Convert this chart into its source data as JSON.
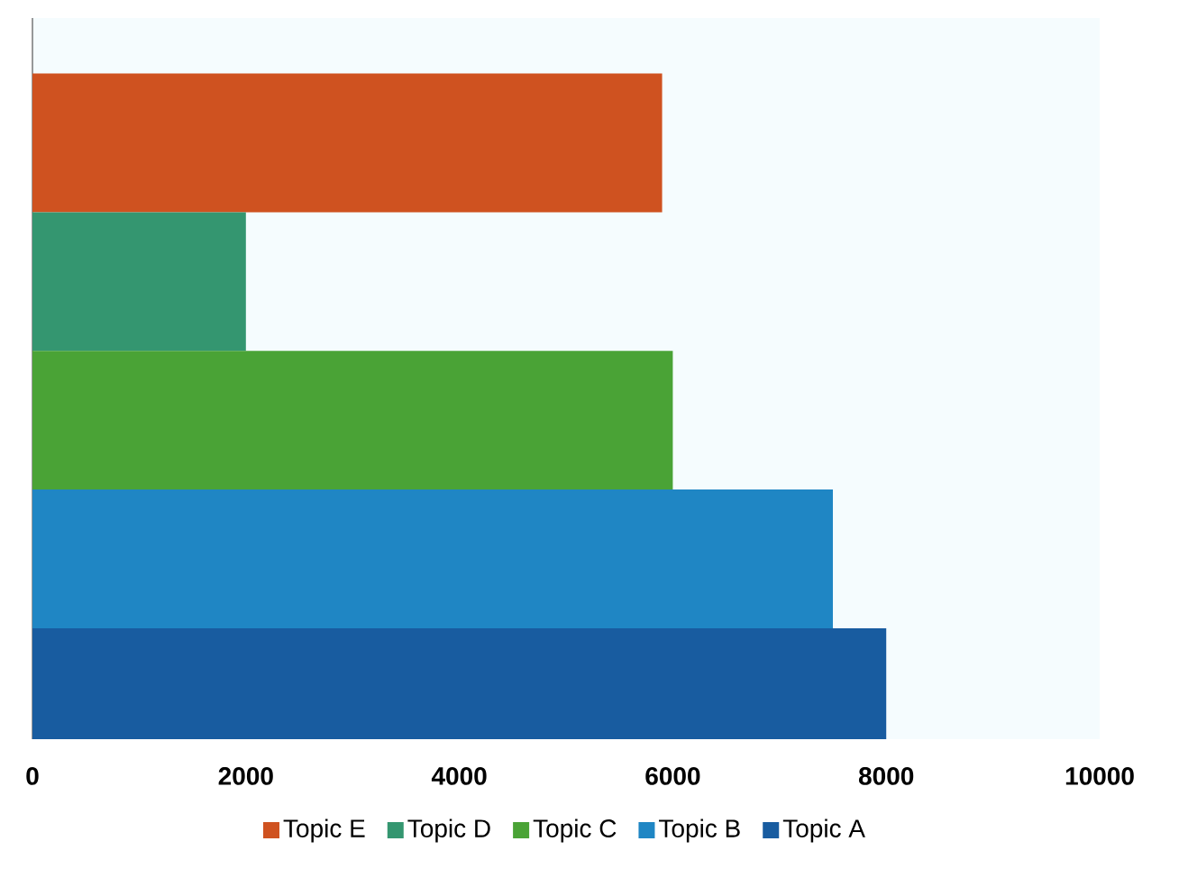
{
  "chart_data": {
    "type": "bar",
    "orientation": "horizontal",
    "categories": [
      null,
      null,
      null,
      null,
      null
    ],
    "series": [
      {
        "name": "Topic E",
        "color": "#cf5220",
        "values": [
          5900,
          null,
          null,
          null,
          null
        ]
      },
      {
        "name": "Topic D",
        "color": "#349670",
        "values": [
          null,
          2000,
          null,
          null,
          null
        ]
      },
      {
        "name": "Topic C",
        "color": "#4aa336",
        "values": [
          null,
          null,
          6000,
          null,
          null
        ]
      },
      {
        "name": "Topic B",
        "color": "#1f86c4",
        "values": [
          null,
          null,
          null,
          7500,
          null
        ]
      },
      {
        "name": "Topic A",
        "color": "#185ca0",
        "values": [
          null,
          null,
          null,
          null,
          8000
        ]
      }
    ],
    "xlim": [
      0,
      10000
    ],
    "xticks": [
      0,
      2000,
      4000,
      6000,
      8000,
      10000
    ],
    "legend": "bottom"
  }
}
